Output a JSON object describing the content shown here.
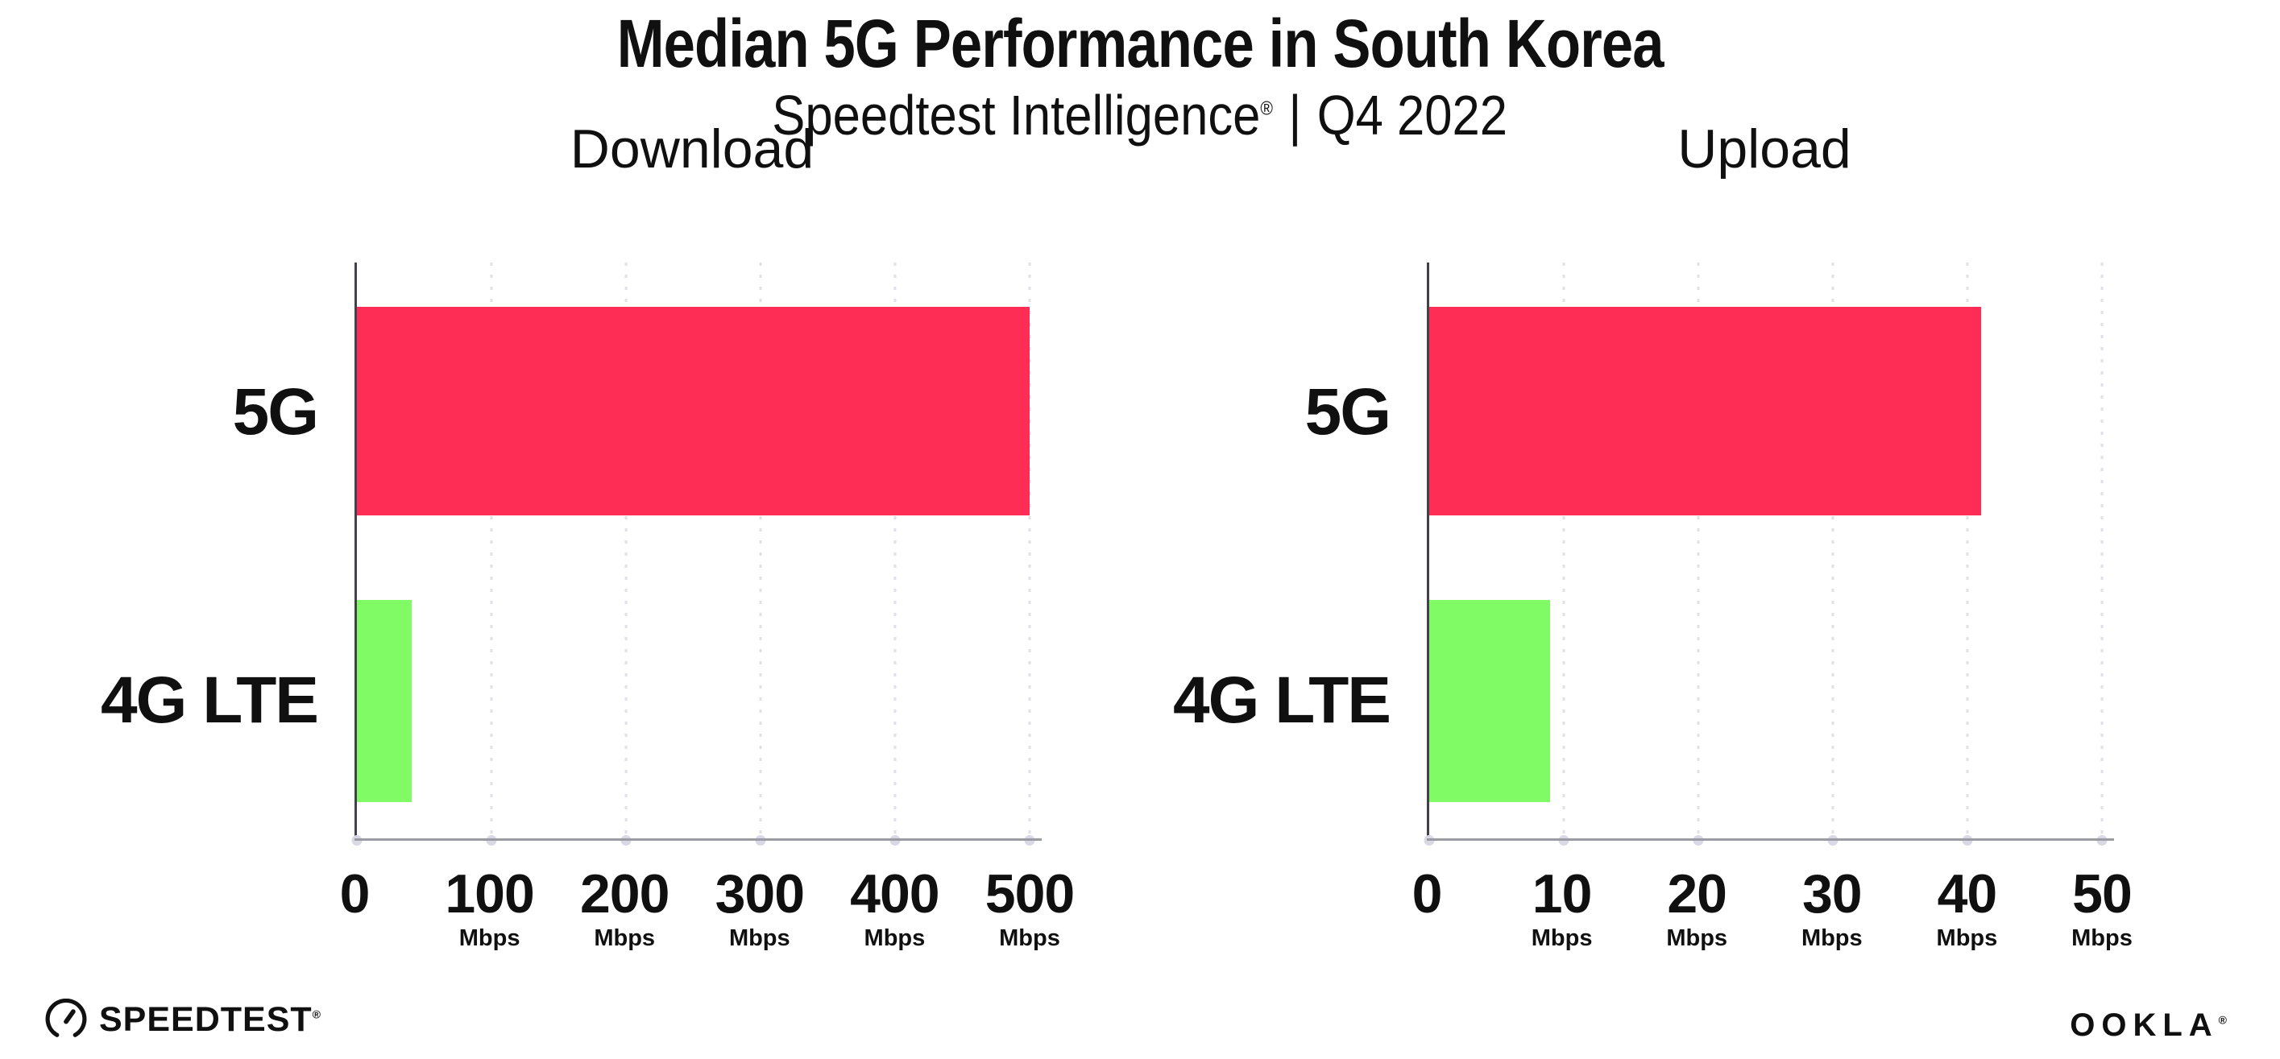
{
  "page": {
    "title": "Median 5G Performance in South Korea",
    "subtitle_brand": "Speedtest Intelligence",
    "subtitle_reg_mark": "®",
    "subtitle_separator": "|",
    "subtitle_period": "Q4 2022"
  },
  "colors": {
    "bar_5g": "#FE2D55",
    "bar_4g_lte": "#80FB66",
    "y_axis": "#41414B",
    "x_axis": "#9B9BA3",
    "gridline": "#E0E0EA",
    "text": "#101010",
    "background": "#FFFFFF"
  },
  "chart_data": [
    {
      "type": "bar",
      "orientation": "horizontal",
      "title": "Download",
      "categories": [
        "5G",
        "4G LTE"
      ],
      "values": [
        500,
        41
      ],
      "unit": "Mbps",
      "xlim": [
        0,
        500
      ],
      "x_ticks": [
        {
          "value": "0",
          "unit": ""
        },
        {
          "value": "100",
          "unit": "Mbps"
        },
        {
          "value": "200",
          "unit": "Mbps"
        },
        {
          "value": "300",
          "unit": "Mbps"
        },
        {
          "value": "400",
          "unit": "Mbps"
        },
        {
          "value": "500",
          "unit": "Mbps"
        }
      ],
      "bar_colors": [
        "#FE2D55",
        "#80FB66"
      ],
      "grid": "vertical-dotted",
      "legend": "none"
    },
    {
      "type": "bar",
      "orientation": "horizontal",
      "title": "Upload",
      "categories": [
        "5G",
        "4G LTE"
      ],
      "values": [
        41,
        9
      ],
      "unit": "Mbps",
      "xlim": [
        0,
        50
      ],
      "x_ticks": [
        {
          "value": "0",
          "unit": ""
        },
        {
          "value": "10",
          "unit": "Mbps"
        },
        {
          "value": "20",
          "unit": "Mbps"
        },
        {
          "value": "30",
          "unit": "Mbps"
        },
        {
          "value": "40",
          "unit": "Mbps"
        },
        {
          "value": "50",
          "unit": "Mbps"
        }
      ],
      "bar_colors": [
        "#FE2D55",
        "#80FB66"
      ],
      "grid": "vertical-dotted",
      "legend": "none"
    }
  ],
  "footer": {
    "speedtest_wordmark": "SPEEDTEST",
    "speedtest_reg_mark": "®",
    "ookla_wordmark": "OOKLA",
    "ookla_reg_mark": "®"
  }
}
